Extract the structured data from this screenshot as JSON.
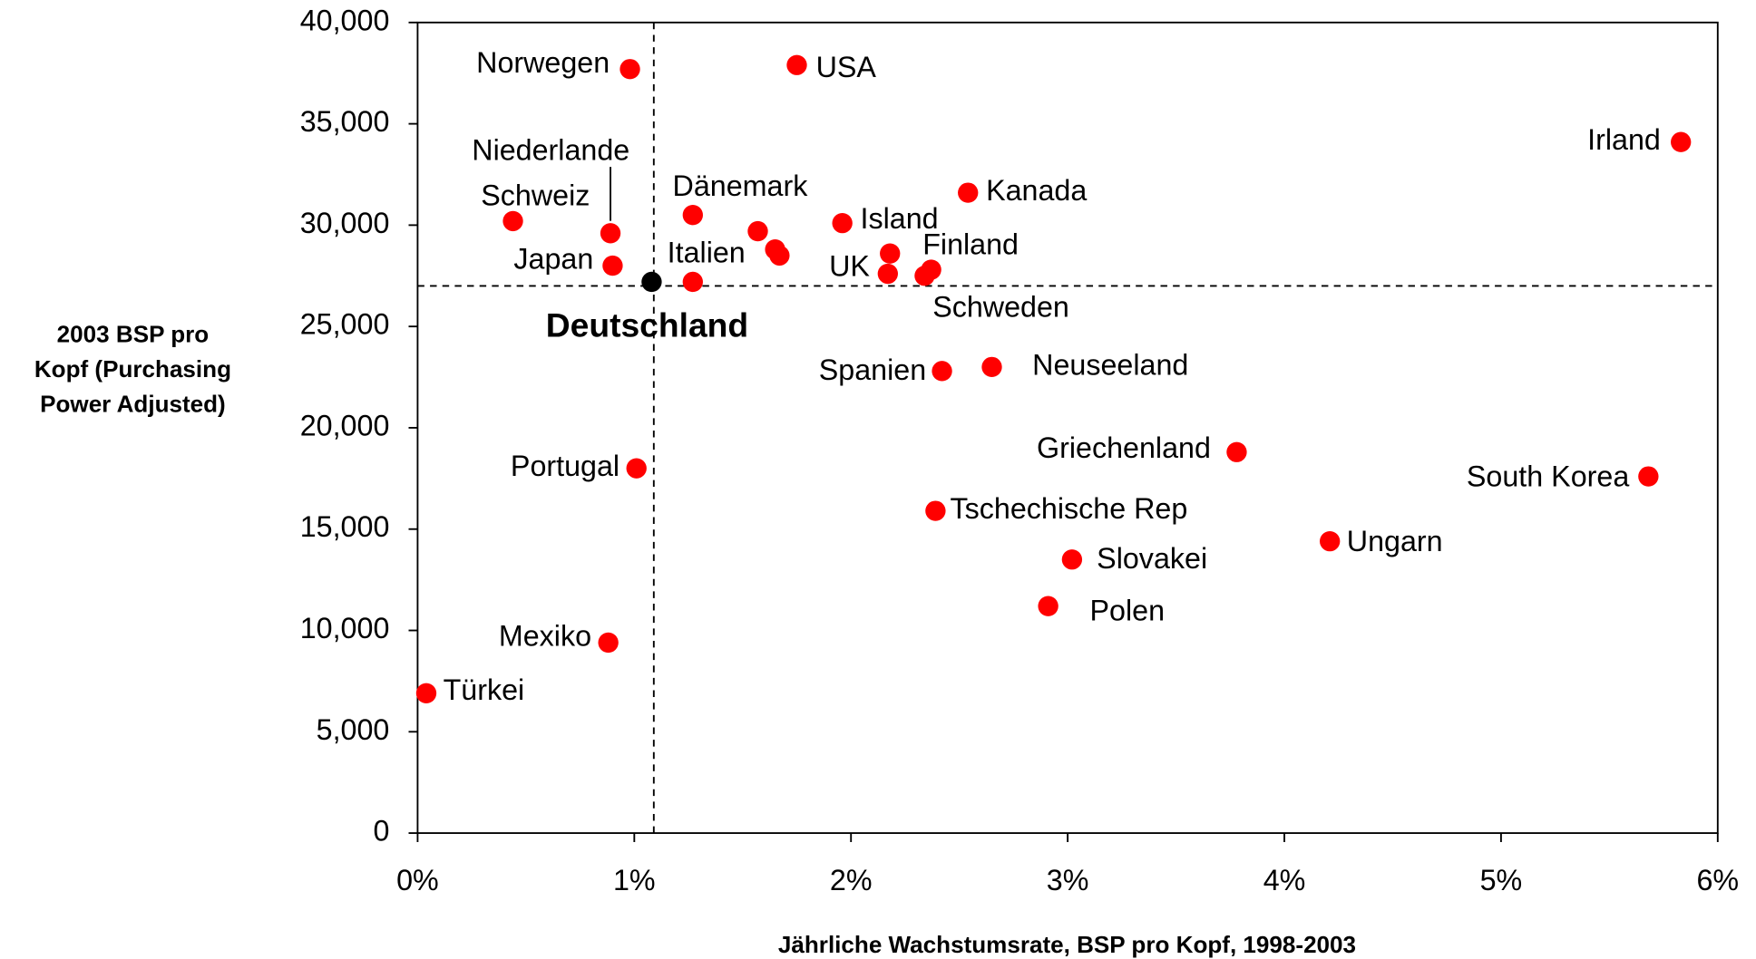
{
  "chart_data": {
    "type": "scatter",
    "xlabel": "Jährliche Wachstumsrate, BSP pro Kopf, 1998-2003",
    "ylabel": [
      "2003 BSP pro",
      "Kopf (Purchasing",
      "Power Adjusted)"
    ],
    "xlim": [
      0,
      6
    ],
    "ylim": [
      0,
      40000
    ],
    "xticks": [
      {
        "value": 0,
        "label": "0%"
      },
      {
        "value": 1,
        "label": "1%"
      },
      {
        "value": 2,
        "label": "2%"
      },
      {
        "value": 3,
        "label": "3%"
      },
      {
        "value": 4,
        "label": "4%"
      },
      {
        "value": 5,
        "label": "5%"
      },
      {
        "value": 6,
        "label": "6%"
      }
    ],
    "yticks": [
      0,
      {
        "value": 5000,
        "label": "5,000"
      },
      {
        "value": 10000,
        "label": "10,000"
      },
      {
        "value": 15000,
        "label": "15,000"
      },
      {
        "value": 20000,
        "label": "20,000"
      },
      {
        "value": 25000,
        "label": "25,000"
      },
      {
        "value": 30000,
        "label": "30,000"
      },
      {
        "value": 35000,
        "label": "35,000"
      },
      {
        "value": 40000,
        "label": "40,000"
      }
    ],
    "reference_lines": {
      "x": 1.09,
      "y": 27000
    },
    "labels": [
      "Norwegen",
      "USA",
      "Irland",
      "Kanada",
      "Dänemark",
      "Island",
      "Schweiz",
      "Niederlande",
      "Japan",
      null,
      null,
      null,
      "Italien",
      "Finland",
      "UK",
      "Schweden",
      null,
      "Deutschland",
      "Spanien",
      "Neuseeland",
      "Griechenland",
      "South Korea",
      "Portugal",
      "Tschechische Rep",
      "Ungarn",
      "Slovakei",
      "Polen",
      "Mexiko",
      "Türkei"
    ],
    "x": [
      0.98,
      1.75,
      5.83,
      2.54,
      1.27,
      1.96,
      0.44,
      0.89,
      0.9,
      1.57,
      1.65,
      1.67,
      1.27,
      2.18,
      2.17,
      2.37,
      2.34,
      1.08,
      2.42,
      2.65,
      3.78,
      5.68,
      1.01,
      2.39,
      4.21,
      3.02,
      2.91,
      0.88,
      0.04
    ],
    "y": [
      37700,
      37900,
      34100,
      31600,
      30500,
      30100,
      30200,
      29600,
      28000,
      29700,
      28800,
      28500,
      27200,
      28600,
      27600,
      27800,
      27500,
      27200,
      22800,
      23000,
      18800,
      17600,
      18000,
      15900,
      14400,
      13500,
      11200,
      9400,
      6900
    ],
    "colors": [
      "#ff0000",
      "#ff0000",
      "#ff0000",
      "#ff0000",
      "#ff0000",
      "#ff0000",
      "#ff0000",
      "#ff0000",
      "#ff0000",
      "#ff0000",
      "#ff0000",
      "#ff0000",
      "#ff0000",
      "#ff0000",
      "#ff0000",
      "#ff0000",
      "#ff0000",
      "#000000",
      "#ff0000",
      "#ff0000",
      "#ff0000",
      "#ff0000",
      "#ff0000",
      "#ff0000",
      "#ff0000",
      "#ff0000",
      "#ff0000",
      "#ff0000",
      "#ff0000"
    ]
  }
}
